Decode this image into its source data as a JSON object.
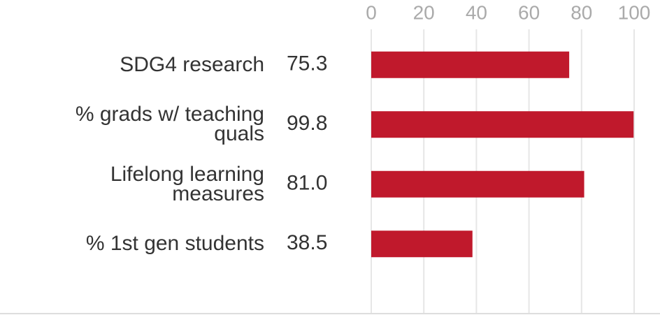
{
  "chart_data": {
    "type": "bar",
    "orientation": "horizontal",
    "categories": [
      "SDG4 research",
      "% grads w/ teaching quals",
      "Lifelong learning measures",
      "% 1st gen students"
    ],
    "values": [
      75.3,
      99.8,
      81.0,
      38.5
    ],
    "value_labels": [
      "75.3",
      "99.8",
      "81.0",
      "38.5"
    ],
    "color": "#c0192c",
    "xlim": [
      0,
      100
    ],
    "xticks": [
      0,
      20,
      40,
      60,
      80,
      100
    ],
    "grid": true
  }
}
